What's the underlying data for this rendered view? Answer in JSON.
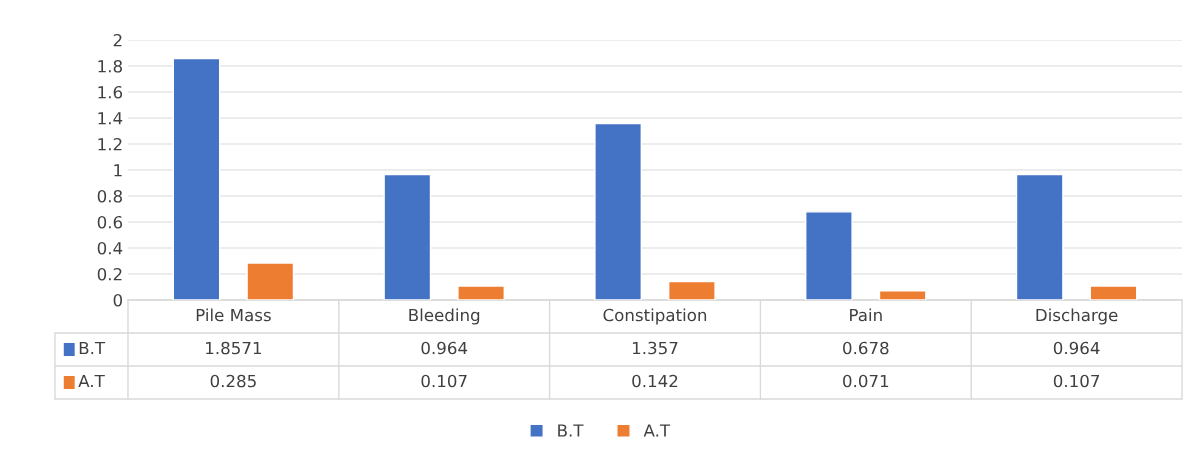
{
  "chart_data": {
    "type": "bar",
    "categories": [
      "Pile Mass",
      "Bleeding",
      "Constipation",
      "Pain",
      "Discharge"
    ],
    "series": [
      {
        "name": "B.T",
        "color": "#4472c4",
        "values": [
          1.8571,
          0.964,
          1.357,
          0.678,
          0.964
        ]
      },
      {
        "name": "A.T",
        "color": "#ed7d31",
        "values": [
          0.285,
          0.107,
          0.142,
          0.071,
          0.107
        ]
      }
    ],
    "ylim": [
      0,
      2
    ],
    "yticks": [
      0,
      0.2,
      0.4,
      0.6,
      0.8,
      1,
      1.2,
      1.4,
      1.6,
      1.8,
      2
    ],
    "grid": "y",
    "legend": "bottom",
    "data_labels": true
  }
}
